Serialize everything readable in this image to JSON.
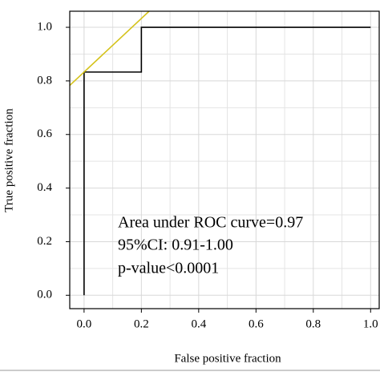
{
  "chart_data": {
    "type": "line",
    "x_label": "False positive fraction",
    "y_label": "True positive fraction",
    "annotations": [
      "Area under ROC curve=0.97",
      "95%CI: 0.91-1.00",
      "p-value<0.0001"
    ],
    "xlim": [
      -0.05,
      1.03
    ],
    "ylim": [
      -0.05,
      1.06
    ],
    "xticks": [
      {
        "value": 0,
        "label": "0.0"
      },
      {
        "value": 0.2,
        "label": "0.2"
      },
      {
        "value": 0.4,
        "label": "0.4"
      },
      {
        "value": 0.6,
        "label": "0.6"
      },
      {
        "value": 0.8,
        "label": "0.8"
      },
      {
        "value": 1,
        "label": "1.0"
      }
    ],
    "yticks": [
      {
        "value": 0,
        "label": "0.0"
      },
      {
        "value": 0.2,
        "label": "0.2"
      },
      {
        "value": 0.4,
        "label": "0.4"
      },
      {
        "value": 0.6,
        "label": "0.6"
      },
      {
        "value": 0.8,
        "label": "0.8"
      },
      {
        "value": 1,
        "label": "1.0"
      }
    ],
    "grid": true,
    "minor_grid": true,
    "series": [
      {
        "color": "#000000",
        "x": [
          0,
          0,
          0.2,
          0.2,
          1
        ],
        "values": [
          0,
          0.833,
          0.833,
          1,
          1
        ]
      },
      {
        "color": "#d4c21a",
        "x": [
          -0.05,
          0.23
        ],
        "values": [
          0.783,
          1.063
        ]
      }
    ]
  }
}
